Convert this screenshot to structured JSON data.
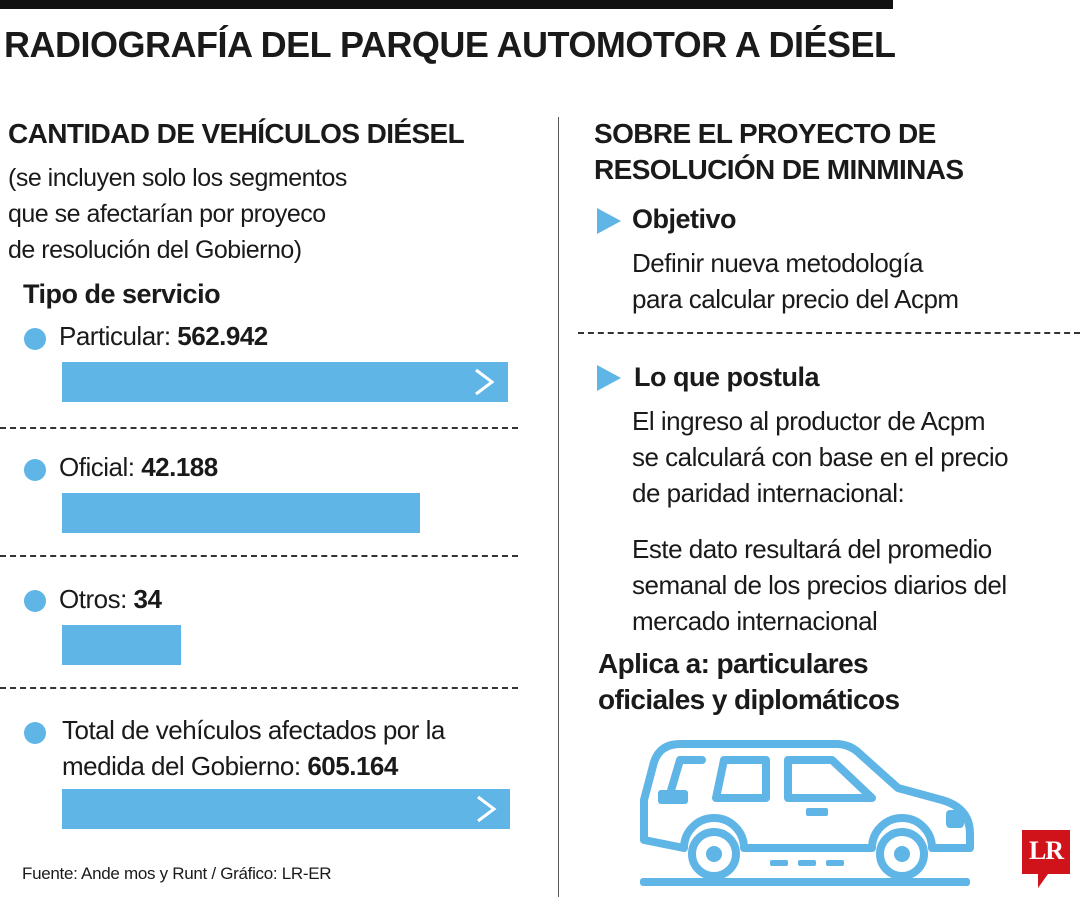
{
  "title": "RADIOGRAFÍA DEL PARQUE AUTOMOTOR A DIÉSEL",
  "left": {
    "heading": "CANTIDAD DE VEHÍCULOS DIÉSEL",
    "note_lines": [
      "(se incluyen solo los segmentos",
      "que se afectarían por proyeco",
      "de resolución del Gobierno)"
    ],
    "subheading": "Tipo de servicio",
    "source": "Fuente: Ande mos y Runt / Gráfico: LR-ER"
  },
  "chart_data": {
    "type": "bar",
    "orientation": "horizontal",
    "title": "CANTIDAD DE VEHÍCULOS DIÉSEL",
    "categories": [
      "Particular",
      "Oficial",
      "Otros"
    ],
    "values": [
      562942,
      42188,
      34
    ],
    "value_labels": [
      "562.942",
      "42.188",
      "34"
    ],
    "total": {
      "label_line1": "Total de vehículos afectados por la",
      "label_line2": "medida del Gobierno:",
      "value": 605164,
      "value_label": "605.164"
    },
    "grid": false,
    "legend": "none",
    "bar_color": "#5eb5e6"
  },
  "right": {
    "heading_lines": [
      "SOBRE EL PROYECTO DE",
      "RESOLUCIÓN DE MINMINAS"
    ],
    "objective": {
      "title": "Objetivo",
      "lines": [
        "Definir nueva metodología",
        "para calcular precio del Acpm"
      ]
    },
    "postula": {
      "title": "Lo que postula",
      "para1": [
        "El ingreso al productor de Acpm",
        "se calculará con base en el precio",
        "de paridad internacional:"
      ],
      "para2": [
        "Este dato resultará del promedio",
        "semanal de los precios diarios del",
        "mercado internacional"
      ]
    },
    "applies_lines": [
      "Aplica a: particulares",
      "oficiales y diplomáticos"
    ]
  },
  "logo": {
    "text": "LR",
    "color": "#d0131b"
  },
  "icons": {
    "bullet": "dot-icon",
    "arrow": "triangle-arrow-icon",
    "car": "car-icon"
  },
  "colors": {
    "accent": "#5eb5e6",
    "text": "#1a1a1a"
  }
}
